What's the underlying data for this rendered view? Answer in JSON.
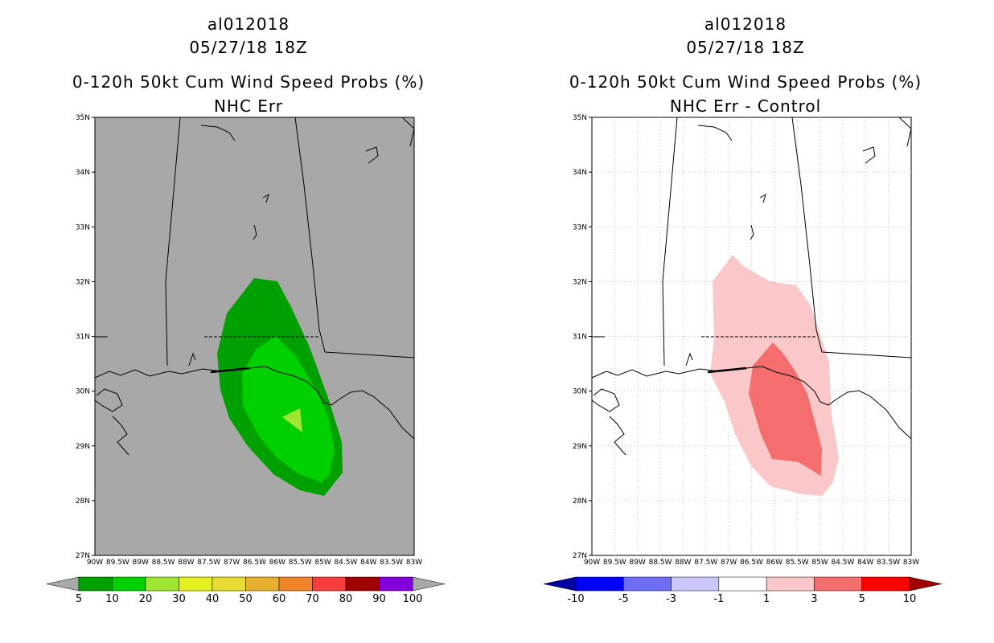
{
  "panels": [
    {
      "storm_id": "al012018",
      "datetime": "05/27/18 18Z",
      "product": "0-120h 50kt Cum Wind Speed Probs (%)",
      "subtitle": "NHC Err",
      "background_color": "#a8a8a8",
      "colorbar": {
        "ticks": [
          "5",
          "10",
          "20",
          "30",
          "40",
          "50",
          "60",
          "70",
          "80",
          "90",
          "100"
        ],
        "colors": [
          "#00a000",
          "#00d000",
          "#a0e632",
          "#e6f020",
          "#e6dc32",
          "#e6af2d",
          "#f08228",
          "#fa3c3c",
          "#a00000",
          "#8200dc"
        ],
        "end_arrow_left_color": "#a8a8a8",
        "end_arrow_right_color": "#a8a8a8"
      }
    },
    {
      "storm_id": "al012018",
      "datetime": "05/27/18 18Z",
      "product": "0-120h 50kt Cum Wind Speed Probs (%)",
      "subtitle": "NHC Err - Control",
      "background_color": "#ffffff",
      "colorbar": {
        "ticks": [
          "-10",
          "-5",
          "-3",
          "-1",
          "1",
          "3",
          "5",
          "10"
        ],
        "colors": [
          "#0000ff",
          "#6e6ef5",
          "#c8c8fa",
          "#ffffff",
          "#fac8c8",
          "#f56e6e",
          "#ff0000"
        ],
        "end_arrow_left_color": "#0000a0",
        "end_arrow_right_color": "#a00000"
      }
    }
  ],
  "map": {
    "lat_labels": [
      "35N",
      "34N",
      "33N",
      "32N",
      "31N",
      "30N",
      "29N",
      "28N",
      "27N"
    ],
    "lon_labels": [
      "90W",
      "89.5W",
      "89W",
      "88.5W",
      "88W",
      "87.5W",
      "87W",
      "86.5W",
      "86W",
      "85.5W",
      "85W",
      "84.5W",
      "84W",
      "83.5W",
      "83W"
    ]
  }
}
